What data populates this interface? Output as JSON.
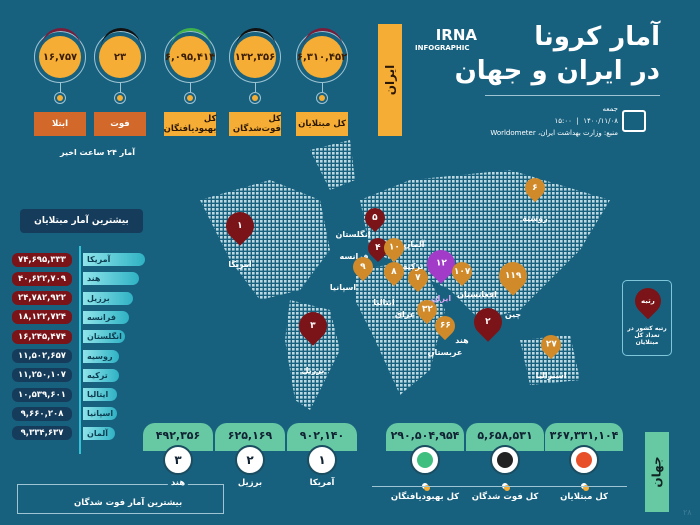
{
  "header": {
    "logo_top": "IRNA",
    "logo_bottom": "INFOGRAPHIC",
    "title_line1": "آمار کرونا",
    "title_line2": "در ایران و جهان",
    "day": "جمعه",
    "date": "۱۴۰۰/۱۱/۰۸",
    "time": "۱۵:۰۰",
    "source": "منبع: وزارت بهداشت ایران، Worldometer"
  },
  "iran": {
    "tab": "ایران",
    "stats": [
      {
        "label": "کل مبتلایان",
        "value": "۶,۳۱۰,۴۵۲",
        "arc": "#7a1d3a"
      },
      {
        "label": "کل فوت‌شدگان",
        "value": "۱۳۲,۳۵۶",
        "arc": "#111111"
      },
      {
        "label": "کل بهبودیافتگان",
        "value": "۶,۰۹۵,۴۱۴",
        "arc": "#3fb24a"
      },
      {
        "label": "فوت",
        "value": "۲۳",
        "arc": "#111111"
      },
      {
        "label": "ابتلا",
        "value": "۱۶,۷۵۷",
        "arc": "#7a1d3a"
      }
    ],
    "note": "آمار ۲۴ ساعت اخیر"
  },
  "top_cases": {
    "title": "بیشترین آمار مبتلایان",
    "rows": [
      {
        "country": "آمریکا",
        "value": "۷۴,۶۹۵,۳۳۳"
      },
      {
        "country": "هند",
        "value": "۴۰,۶۲۲,۷۰۹"
      },
      {
        "country": "برزیل",
        "value": "۲۴,۷۸۲,۹۲۲"
      },
      {
        "country": "فرانسه",
        "value": "۱۸,۱۲۲,۷۲۴"
      },
      {
        "country": "انگلستان",
        "value": "۱۶,۲۴۵,۴۷۴"
      },
      {
        "country": "روسیه",
        "value": "۱۱,۵۰۲,۶۵۷"
      },
      {
        "country": "ترکیه",
        "value": "۱۱,۲۵۰,۱۰۷"
      },
      {
        "country": "ایتالیا",
        "value": "۱۰,۵۳۹,۶۰۱"
      },
      {
        "country": "اسپانیا",
        "value": "۹,۶۶۰,۲۰۸"
      },
      {
        "country": "آلمان",
        "value": "۹,۳۳۴,۶۳۷"
      }
    ]
  },
  "map": {
    "pins": [
      {
        "rank": "۱",
        "country": "آمریکا",
        "color": "#7a1418"
      },
      {
        "rank": "۳",
        "country": "برزیل",
        "color": "#7a1418"
      },
      {
        "rank": "۵",
        "country": "انگلستان",
        "color": "#7a1418"
      },
      {
        "rank": "۴",
        "country": "فرانسه",
        "color": "#7a1418"
      },
      {
        "rank": "۱۰",
        "country": "آلمان",
        "color": "#d08a2a"
      },
      {
        "rank": "۹",
        "country": "اسپانیا",
        "color": "#d08a2a"
      },
      {
        "rank": "۸",
        "country": "ایتالیا",
        "color": "#d08a2a"
      },
      {
        "rank": "۷",
        "country": "ترکیه",
        "color": "#d08a2a"
      },
      {
        "rank": "۱۲",
        "country": "ایران",
        "color": "#a23bc7"
      },
      {
        "rank": "۱۰۷",
        "country": "افغانستان",
        "color": "#d08a2a"
      },
      {
        "rank": "۳۲",
        "country": "عراق",
        "color": "#d08a2a"
      },
      {
        "rank": "۶۶",
        "country": "عربستان",
        "color": "#d08a2a"
      },
      {
        "rank": "۲",
        "country": "هند",
        "color": "#7a1418"
      },
      {
        "rank": "۱۱۹",
        "country": "چین",
        "color": "#d08a2a"
      },
      {
        "rank": "۶",
        "country": "روسیه",
        "color": "#d08a2a"
      },
      {
        "rank": "۲۷",
        "country": "استرالیا",
        "color": "#d08a2a"
      }
    ],
    "legend_pin": "رتبه",
    "legend_text": "رتبه کشور در تعداد کل مبتلایان"
  },
  "world": {
    "tab": "جهان",
    "stats": [
      {
        "label": "کل مبتلایان",
        "value": "۳۶۷,۳۳۱,۱۰۴",
        "icon": "virus-icon"
      },
      {
        "label": "کل فوت شدگان",
        "value": "۵,۶۵۸,۵۳۱",
        "icon": "virus-dark-icon"
      },
      {
        "label": "کل بهبودیافتگان",
        "value": "۲۹۰,۵۰۴,۹۵۴",
        "icon": "heart-icon"
      }
    ],
    "top_deaths": {
      "title": "بیشترین آمار فوت شدگان",
      "rows": [
        {
          "rank": "۱",
          "country": "آمریکا",
          "value": "۹۰۲,۱۴۰"
        },
        {
          "rank": "۲",
          "country": "برزیل",
          "value": "۶۲۵,۱۶۹"
        },
        {
          "rank": "۳",
          "country": "هند",
          "value": "۴۹۲,۳۵۶"
        }
      ]
    }
  },
  "page_number": "۲۸"
}
